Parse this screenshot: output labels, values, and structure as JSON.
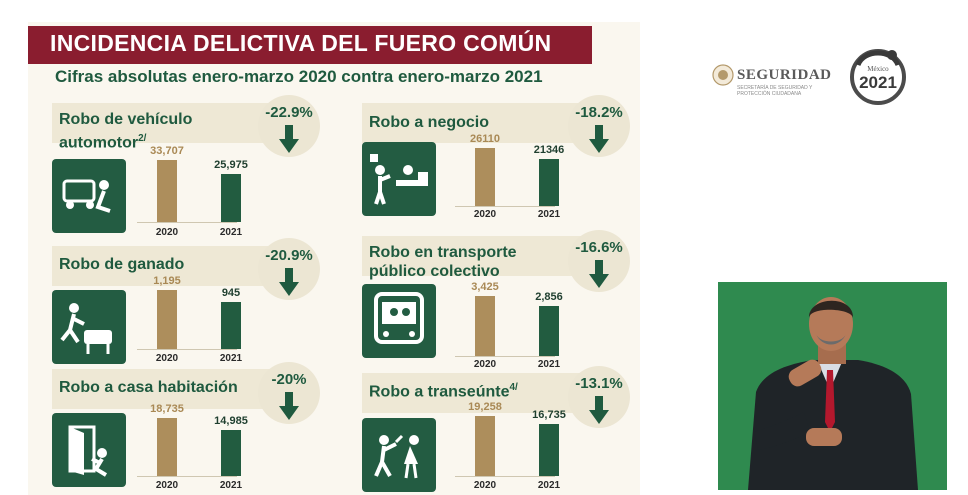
{
  "header": {
    "title": "INCIDENCIA DELICTIVA DEL FUERO COMÚN",
    "subtitle": "Cifras absolutas enero-marzo 2020 contra enero-marzo 2021"
  },
  "logos": {
    "seguridad_name": "SEGURIDAD",
    "seguridad_sub": "SECRETARÍA DE SEGURIDAD Y PROTECCIÓN CIUDADANA",
    "year_seal_top": "México",
    "year_seal_year": "2021"
  },
  "colors": {
    "title_bar": "#8a1d2f",
    "green": "#225c40",
    "gold": "#ad8e5c",
    "band": "#eee8d5"
  },
  "chart_data": [
    {
      "type": "bar",
      "title_line1": "Robo de vehículo",
      "title_line2": "automotor",
      "footnote": "2/",
      "change": "-22.9%",
      "categories": [
        "2020",
        "2021"
      ],
      "values": [
        33707,
        25975
      ],
      "value_labels": [
        "33,707",
        "25,975"
      ],
      "icon": "car-theft-icon"
    },
    {
      "type": "bar",
      "title_line1": "Robo de ganado",
      "title_line2": "",
      "footnote": "",
      "change": "-20.9%",
      "categories": [
        "2020",
        "2021"
      ],
      "values": [
        1195,
        945
      ],
      "value_labels": [
        "1,195",
        "945"
      ],
      "icon": "livestock-theft-icon"
    },
    {
      "type": "bar",
      "title_line1": "Robo a casa habitación",
      "title_line2": "",
      "footnote": "",
      "change": "-20%",
      "categories": [
        "2020",
        "2021"
      ],
      "values": [
        18735,
        14985
      ],
      "value_labels": [
        "18,735",
        "14,985"
      ],
      "icon": "house-burglary-icon"
    },
    {
      "type": "bar",
      "title_line1": "Robo a negocio",
      "title_line2": "",
      "footnote": "",
      "change": "-18.2%",
      "categories": [
        "2020",
        "2021"
      ],
      "values": [
        26110,
        21346
      ],
      "value_labels": [
        "26110",
        "21346"
      ],
      "icon": "business-robbery-icon"
    },
    {
      "type": "bar",
      "title_line1": "Robo en transporte",
      "title_line2": "público colectivo",
      "footnote": "",
      "change": "-16.6%",
      "categories": [
        "2020",
        "2021"
      ],
      "values": [
        3425,
        2856
      ],
      "value_labels": [
        "3,425",
        "2,856"
      ],
      "icon": "bus-robbery-icon"
    },
    {
      "type": "bar",
      "title_line1": "Robo a transeúnte",
      "title_line2": "",
      "footnote": "4/",
      "change": "-13.1%",
      "categories": [
        "2020",
        "2021"
      ],
      "values": [
        19258,
        16735
      ],
      "value_labels": [
        "19,258",
        "16,735"
      ],
      "icon": "pedestrian-robbery-icon"
    }
  ],
  "interpreter": {
    "icon": "sign-language-interpreter"
  }
}
